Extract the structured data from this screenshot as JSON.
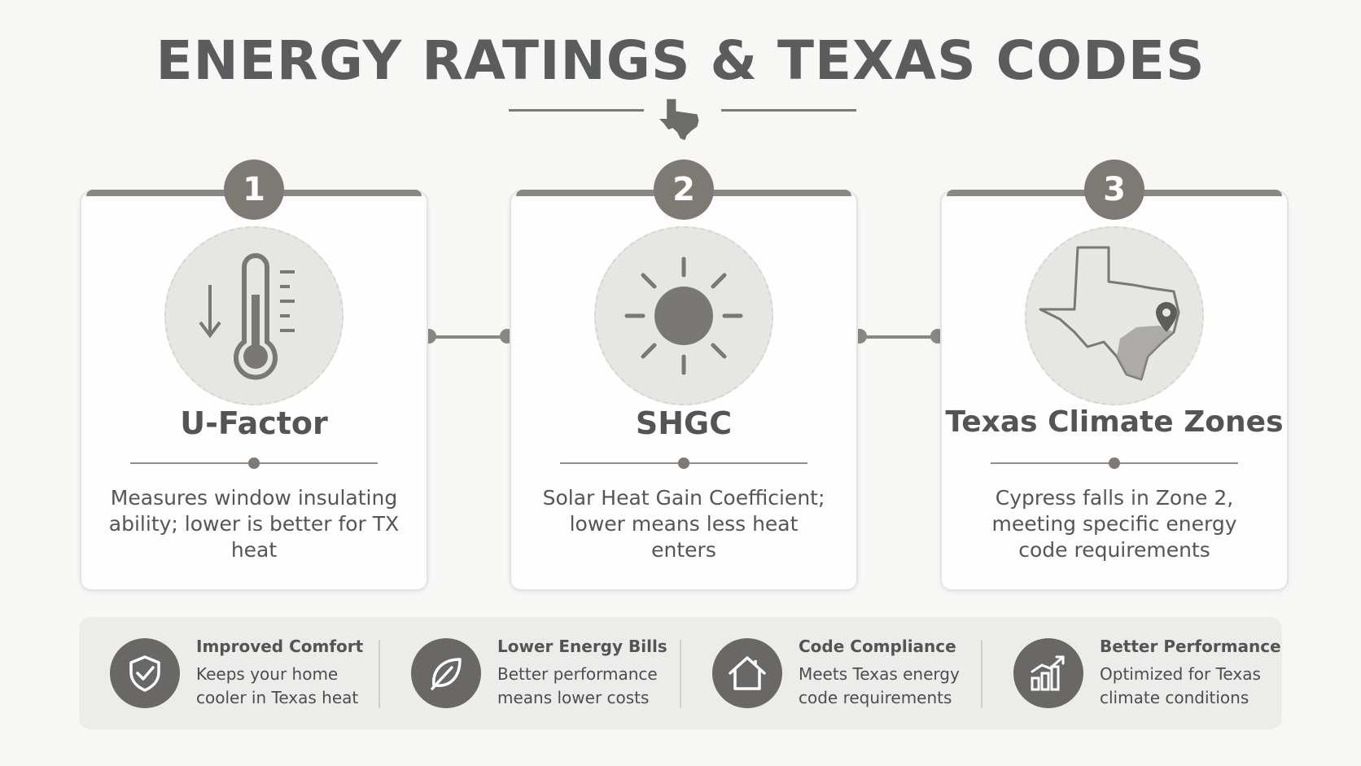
{
  "title": "ENERGY RATINGS & TEXAS CODES",
  "cards": [
    {
      "number": "1",
      "icon": "thermometer-icon",
      "title": "U-Factor",
      "description": "Measures window insulating ability; lower is better for TX heat"
    },
    {
      "number": "2",
      "icon": "sun-icon",
      "title": "SHGC",
      "description": "Solar Heat Gain Coefficient; lower means less heat enters"
    },
    {
      "number": "3",
      "icon": "texas-map-icon",
      "title": "Texas Climate Zones",
      "description": "Cypress falls in Zone 2, meeting specific energy code requirements"
    }
  ],
  "benefits": [
    {
      "icon": "shield-check-icon",
      "title": "Improved Comfort",
      "text": "Keeps your home cooler in Texas heat"
    },
    {
      "icon": "leaf-icon",
      "title": "Lower Energy Bills",
      "text": "Better performance means lower costs"
    },
    {
      "icon": "house-icon",
      "title": "Code Compliance",
      "text": "Meets Texas energy code requirements"
    },
    {
      "icon": "bar-chart-icon",
      "title": "Better Performance",
      "text": "Optimized for Texas climate conditions"
    }
  ],
  "colors": {
    "title": "#5b5c5e",
    "accent": "#7d7a76",
    "icon_bg": "#6a6866",
    "panel": "#ececea"
  }
}
